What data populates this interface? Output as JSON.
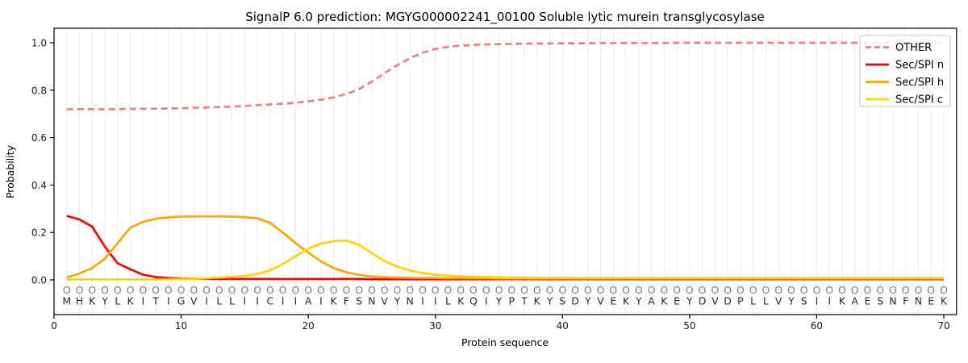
{
  "figure": {
    "kind": "SignalP 6.0 probability plot"
  },
  "chart_data": {
    "type": "line",
    "title": "SignalP 6.0 prediction: MGYG000002241_00100 Soluble lytic murein transglycosylase",
    "xlabel": "Protein sequence",
    "ylabel": "Probability",
    "xlim": [
      0,
      71
    ],
    "ylim": [
      -0.145,
      1.06
    ],
    "xticks": [
      0,
      10,
      20,
      30,
      40,
      50,
      60,
      70
    ],
    "yticks": [
      "0.0",
      "0.2",
      "0.4",
      "0.6",
      "0.8",
      "1.0"
    ],
    "grid": "vertical gridline at every residue position 1-70",
    "legend_position": "upper right",
    "x_start": 1,
    "sequence": "MHKYLKITIGVILLIICIIAIKFSNVYNIILKQIYPTKYSDYVEKYAKEYDVDPLLVYSIIKAESNFNEK",
    "per_position_marker": "O",
    "colors": {
      "grid": "#ebebeb",
      "spine": "#000000",
      "tick_text": "#1a1a1a",
      "sequence_text": "#2b2b2b",
      "marker_text": "#7f7f7f",
      "legend_border": "#c9c9c9",
      "legend_bg": "#ffffff"
    },
    "series": [
      {
        "name": "OTHER",
        "color": "#F08080",
        "dash": true,
        "values": [
          0.72,
          0.72,
          0.72,
          0.72,
          0.72,
          0.721,
          0.722,
          0.722,
          0.723,
          0.724,
          0.726,
          0.727,
          0.729,
          0.731,
          0.734,
          0.737,
          0.74,
          0.743,
          0.747,
          0.753,
          0.76,
          0.77,
          0.784,
          0.805,
          0.836,
          0.872,
          0.906,
          0.935,
          0.958,
          0.974,
          0.983,
          0.988,
          0.991,
          0.993,
          0.994,
          0.995,
          0.996,
          0.997,
          0.997,
          0.998,
          0.998,
          0.998,
          0.999,
          0.999,
          0.999,
          0.999,
          0.999,
          0.999,
          1.0,
          1.0,
          1.0,
          1.0,
          1.0,
          1.0,
          1.0,
          1.0,
          1.0,
          1.0,
          1.0,
          1.0,
          1.0,
          1.0,
          1.0,
          1.0,
          1.0,
          1.0,
          1.0,
          1.0,
          1.0,
          1.0
        ]
      },
      {
        "name": "Sec/SPI n",
        "color": "#FF0000",
        "dash": false,
        "values": [
          0.27,
          0.255,
          0.225,
          0.14,
          0.07,
          0.045,
          0.022,
          0.012,
          0.008,
          0.006,
          0.005,
          0.005,
          0.004,
          0.004,
          0.004,
          0.004,
          0.004,
          0.004,
          0.004,
          0.004,
          0.004,
          0.004,
          0.004,
          0.004,
          0.003,
          0.003,
          0.003,
          0.003,
          0.003,
          0.003,
          0.003,
          0.003,
          0.003,
          0.003,
          0.003,
          0.003,
          0.003,
          0.003,
          0.003,
          0.003,
          0.003,
          0.003,
          0.003,
          0.003,
          0.003,
          0.003,
          0.003,
          0.003,
          0.003,
          0.003,
          0.003,
          0.003,
          0.003,
          0.003,
          0.003,
          0.003,
          0.003,
          0.003,
          0.003,
          0.003,
          0.003,
          0.003,
          0.003,
          0.003,
          0.003,
          0.003,
          0.003,
          0.003,
          0.003,
          0.003
        ]
      },
      {
        "name": "Sec/SPI h",
        "color": "#FFA500",
        "dash": false,
        "values": [
          0.01,
          0.027,
          0.05,
          0.09,
          0.155,
          0.22,
          0.245,
          0.258,
          0.264,
          0.267,
          0.268,
          0.268,
          0.268,
          0.267,
          0.265,
          0.26,
          0.24,
          0.2,
          0.155,
          0.115,
          0.078,
          0.05,
          0.032,
          0.021,
          0.015,
          0.012,
          0.01,
          0.009,
          0.008,
          0.008,
          0.007,
          0.007,
          0.007,
          0.007,
          0.006,
          0.006,
          0.006,
          0.006,
          0.006,
          0.006,
          0.006,
          0.006,
          0.006,
          0.006,
          0.006,
          0.006,
          0.006,
          0.006,
          0.006,
          0.006,
          0.006,
          0.006,
          0.006,
          0.006,
          0.006,
          0.006,
          0.006,
          0.006,
          0.006,
          0.006,
          0.006,
          0.006,
          0.006,
          0.006,
          0.006,
          0.006,
          0.006,
          0.006,
          0.006,
          0.006
        ]
      },
      {
        "name": "Sec/SPI c",
        "color": "#FFD700",
        "dash": false,
        "values": [
          0.002,
          0.002,
          0.002,
          0.002,
          0.002,
          0.002,
          0.002,
          0.002,
          0.003,
          0.004,
          0.005,
          0.007,
          0.01,
          0.013,
          0.017,
          0.025,
          0.04,
          0.068,
          0.1,
          0.132,
          0.153,
          0.164,
          0.166,
          0.148,
          0.113,
          0.08,
          0.056,
          0.04,
          0.029,
          0.022,
          0.018,
          0.015,
          0.013,
          0.012,
          0.011,
          0.01,
          0.01,
          0.009,
          0.009,
          0.009,
          0.008,
          0.008,
          0.008,
          0.008,
          0.008,
          0.008,
          0.008,
          0.008,
          0.008,
          0.008,
          0.008,
          0.008,
          0.008,
          0.008,
          0.008,
          0.008,
          0.008,
          0.008,
          0.008,
          0.008,
          0.008,
          0.008,
          0.008,
          0.008,
          0.008,
          0.008,
          0.008,
          0.008,
          0.008,
          0.008
        ]
      }
    ]
  }
}
